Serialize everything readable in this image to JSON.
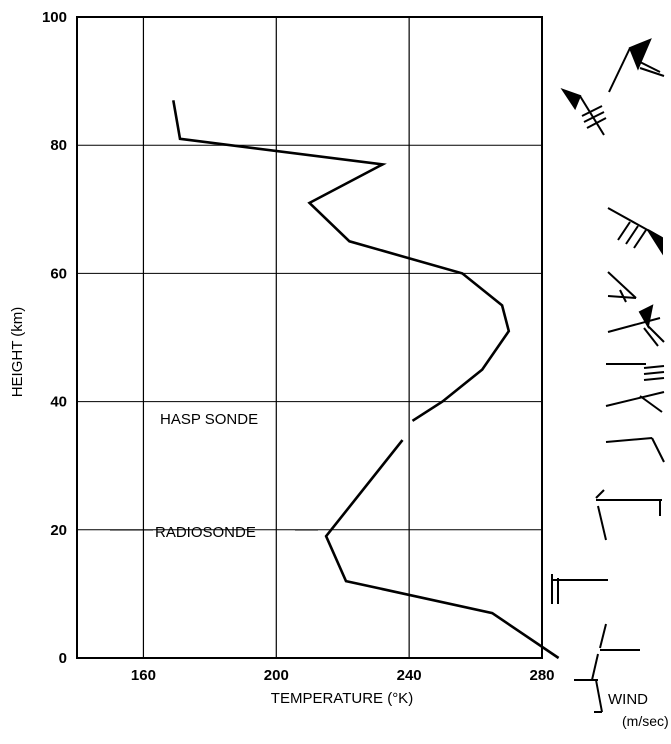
{
  "chart_data": {
    "type": "line",
    "title": "",
    "xlabel": "TEMPERATURE (°K)",
    "ylabel": "HEIGHT (km)",
    "xlim": [
      140,
      280
    ],
    "ylim": [
      0,
      100
    ],
    "x_ticks": [
      "160",
      "200",
      "240",
      "280"
    ],
    "y_ticks": [
      "0",
      "20",
      "40",
      "60",
      "80",
      "100"
    ],
    "grid": true,
    "annotations": [
      "HASP SONDE",
      "RADIOSONDE"
    ],
    "wind_label": "WIND",
    "wind_unit": "(m/sec)",
    "series": [
      {
        "x": [
          285,
          265,
          221,
          215,
          238
        ],
        "y": [
          0,
          7,
          12,
          19,
          34
        ]
      },
      {
        "x": [
          241,
          250,
          262,
          270,
          268,
          256,
          222,
          210,
          232,
          171,
          169
        ],
        "y": [
          37,
          40,
          45,
          51,
          55,
          60,
          65,
          71,
          77,
          81,
          87
        ]
      }
    ]
  }
}
